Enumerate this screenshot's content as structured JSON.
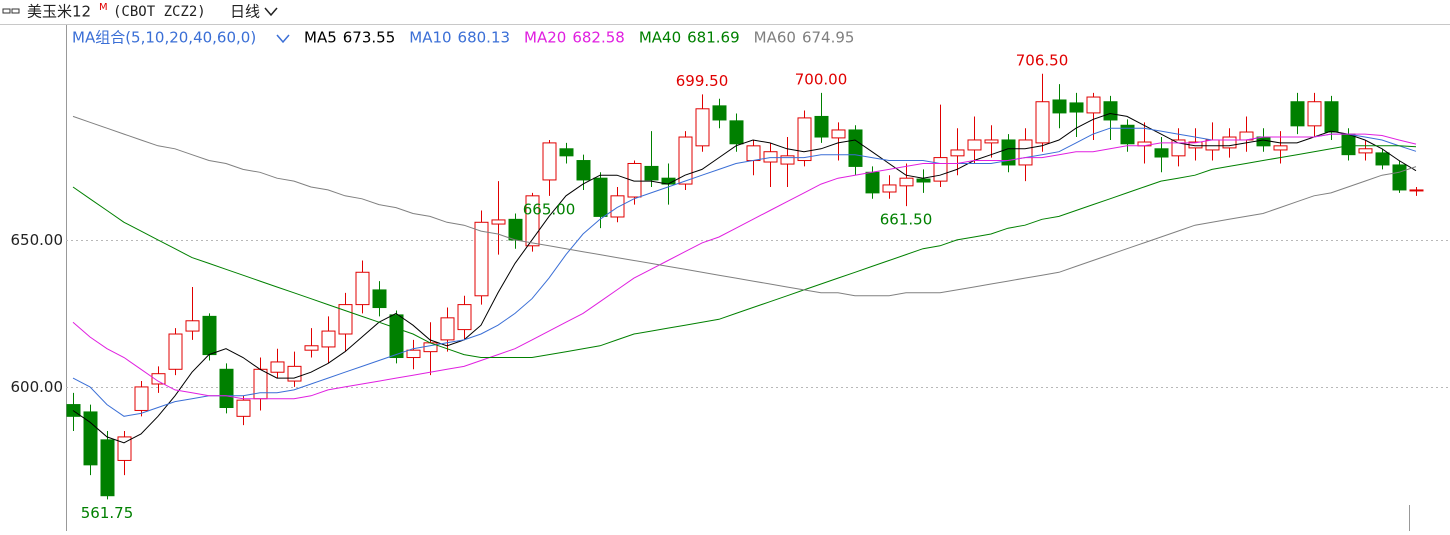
{
  "chart_data": {
    "type": "candlestick",
    "title": "美玉米12",
    "title_sup": "M",
    "subtitle": "(CBOT ZCZ2)",
    "period": "日线",
    "indicator": "MA组合(5,10,20,40,60,0)",
    "up_color": "#e00000",
    "down_color": "#008000",
    "ylim": [
      551,
      723.1
    ],
    "yticks": [
      {
        "value": 600,
        "label": "600.00"
      },
      {
        "value": 650,
        "label": "650.00"
      }
    ],
    "grid": true,
    "open": [
      594,
      591.5,
      582,
      575,
      592,
      601,
      606,
      619,
      624,
      606,
      590,
      596,
      605,
      602,
      612.5,
      613.6,
      618,
      628,
      633,
      624.5,
      610,
      612,
      616,
      619.5,
      631,
      655.4,
      657,
      648,
      670.4,
      681,
      677,
      671,
      657.8,
      664.6,
      675,
      671,
      669,
      682,
      695.6,
      690.5,
      677,
      676.5,
      675.8,
      677,
      692,
      684.7,
      687.4,
      673,
      666.3,
      668.4,
      670.7,
      670,
      678.6,
      680.6,
      683,
      684,
      675.5,
      683,
      697.6,
      696.6,
      693.2,
      697,
      689,
      682,
      681,
      678.6,
      681.3,
      680.6,
      681.3,
      684,
      685,
      680.6,
      697,
      688.8,
      697,
      686,
      679.6,
      679.6,
      675.5,
      667
    ],
    "high": [
      598,
      594,
      585,
      585,
      602,
      607,
      620,
      634,
      625,
      608,
      597,
      610,
      613,
      612,
      620,
      624,
      632,
      643,
      636,
      626,
      616,
      622,
      627,
      631,
      660,
      670,
      659,
      666,
      684,
      683,
      679,
      673,
      668,
      677,
      687,
      676,
      687,
      699.5,
      698,
      693,
      684,
      683,
      685,
      694,
      700,
      690,
      689,
      675,
      672,
      676,
      674,
      696,
      688,
      692,
      689,
      686,
      688,
      706.5,
      703,
      700,
      700,
      699,
      691,
      690,
      685,
      688,
      688,
      690,
      688,
      692,
      688,
      687,
      700,
      700,
      699,
      688,
      684,
      681,
      677,
      668
    ],
    "low": [
      585,
      570,
      561.75,
      570,
      590,
      598,
      604,
      616,
      609,
      591,
      587,
      592,
      603,
      600,
      610,
      608,
      612,
      625,
      624,
      608,
      606,
      604,
      612,
      616,
      628,
      645,
      647,
      646,
      665,
      676,
      667,
      654,
      656,
      662,
      668,
      662,
      667,
      680,
      688,
      680,
      672,
      668,
      668,
      675,
      683,
      677,
      672,
      664,
      664,
      661.5,
      666,
      668,
      672,
      676,
      678,
      673,
      670,
      680,
      688,
      685,
      684,
      684,
      680,
      676,
      673,
      675,
      677,
      677,
      678,
      680,
      680,
      676,
      686,
      685,
      684,
      677,
      677,
      674,
      666,
      665
    ],
    "close": [
      590,
      573.5,
      563,
      583,
      600,
      604.5,
      618,
      622.5,
      611,
      593,
      595.5,
      606,
      608.5,
      607,
      614,
      619,
      628,
      639,
      627,
      610,
      612.5,
      615,
      623.5,
      628,
      656,
      656.8,
      650,
      665,
      683,
      678.6,
      670.4,
      658,
      665,
      676,
      670.4,
      669,
      685,
      694.6,
      690.8,
      682.7,
      682,
      680,
      678.6,
      691.5,
      685,
      687.4,
      675,
      666,
      668.7,
      671,
      669.7,
      678,
      680.6,
      684,
      684,
      675.5,
      684,
      697,
      693.2,
      693.5,
      698.6,
      690.8,
      682.7,
      683.3,
      678.2,
      684,
      683.3,
      684,
      685,
      686.7,
      682,
      682,
      688.8,
      697,
      686.7,
      679,
      681,
      675.5,
      667,
      667
    ],
    "series": [
      {
        "name": "MA5",
        "color": "#000000",
        "values": [
          592,
          588,
          583,
          581,
          584,
          590,
          597,
          605,
          611,
          613,
          610,
          606,
          603,
          603,
          605,
          608,
          612,
          617,
          622,
          625,
          621,
          616,
          614,
          616,
          621,
          632,
          642,
          650,
          658,
          665,
          669,
          672,
          672,
          670,
          670,
          669,
          672,
          674,
          678,
          682,
          684,
          683,
          681,
          680,
          681,
          683,
          684,
          680,
          676,
          672,
          671,
          672,
          674,
          677,
          679,
          681,
          681,
          682,
          684,
          688,
          691,
          693,
          692,
          689,
          686,
          683,
          682,
          682,
          682,
          683,
          684,
          683,
          683,
          685,
          687,
          686,
          684,
          681,
          677,
          673.55
        ],
        "value_labels": {
          "79": "673.55"
        }
      },
      {
        "name": "MA10",
        "color": "#3b6fd6",
        "values": [
          603,
          600,
          594,
          590,
          591,
          593,
          595,
          596,
          597,
          597,
          597,
          598,
          598,
          599,
          601,
          603,
          605,
          607,
          609,
          611,
          613,
          614,
          615,
          616,
          618,
          621,
          625,
          630,
          637,
          645,
          652,
          657,
          661,
          664,
          666,
          668,
          670,
          672,
          674,
          676,
          677,
          678,
          678,
          678,
          679,
          679,
          679,
          678,
          677,
          677,
          677,
          676,
          676,
          676,
          676,
          677,
          678,
          679,
          680,
          683,
          686,
          688,
          688,
          688,
          687,
          686,
          685,
          684,
          684,
          684,
          685,
          685,
          685,
          685,
          686,
          686,
          685,
          684,
          682,
          680.13
        ],
        "value_labels": {
          "79": "680.13"
        }
      },
      {
        "name": "MA20",
        "color": "#e020e0",
        "values": [
          622,
          617,
          613,
          610,
          606,
          602,
          599,
          598,
          597,
          597,
          596,
          596,
          596,
          596,
          597,
          599,
          600,
          601,
          602,
          603,
          604,
          605,
          606,
          607,
          609,
          611,
          613,
          616,
          619,
          622,
          625,
          629,
          633,
          637,
          640,
          643,
          646,
          649,
          651,
          654,
          657,
          660,
          663,
          666,
          669,
          671,
          672,
          673,
          674,
          675,
          676,
          676,
          676,
          677,
          677,
          677,
          678,
          678,
          679,
          680,
          680,
          681,
          682,
          682,
          683,
          683,
          683,
          684,
          684,
          684,
          685,
          685,
          685,
          685,
          686,
          686,
          686,
          685.5,
          684,
          682.58
        ],
        "value_labels": {
          "79": "682.58"
        }
      },
      {
        "name": "MA40",
        "color": "#008000",
        "values": [
          668,
          664,
          660,
          656,
          653,
          650,
          647,
          644,
          642,
          640,
          638,
          636,
          634,
          632,
          630,
          628,
          626,
          624,
          622,
          620,
          618,
          615,
          613,
          611,
          610,
          610,
          610,
          610,
          611,
          612,
          613,
          614,
          616,
          618,
          619,
          620,
          621,
          622,
          623,
          625,
          627,
          629,
          631,
          633,
          635,
          637,
          639,
          641,
          643,
          645,
          647,
          648,
          650,
          651,
          652,
          654,
          655,
          657,
          658,
          660,
          662,
          664,
          666,
          668,
          670,
          671,
          672,
          674,
          675,
          676,
          677,
          678,
          679,
          680,
          681,
          682,
          682,
          682,
          682,
          681.69
        ],
        "value_labels": {
          "79": "681.69"
        }
      },
      {
        "name": "MA60",
        "color": "#808080",
        "values": [
          692,
          690,
          688,
          686,
          684,
          682,
          681,
          679,
          677,
          676,
          674,
          673,
          671,
          670,
          668,
          667,
          665,
          664,
          662,
          661,
          659,
          658,
          656,
          655,
          653,
          652,
          650,
          649,
          648,
          647,
          646,
          645,
          644,
          643,
          642,
          641,
          640,
          639,
          638,
          637,
          636,
          635,
          634,
          633,
          632,
          632,
          631,
          631,
          631,
          632,
          632,
          632,
          633,
          634,
          635,
          636,
          637,
          638,
          639,
          641,
          643,
          645,
          647,
          649,
          651,
          653,
          655,
          656,
          657,
          658,
          659,
          661,
          663,
          665,
          666,
          668,
          670,
          672,
          673,
          674.95
        ],
        "value_labels": {
          "79": "674.95"
        }
      }
    ],
    "annotations": [
      {
        "label": "699.50",
        "value": 699.5,
        "kind": "high"
      },
      {
        "label": "706.50",
        "value": 706.5,
        "kind": "high"
      },
      {
        "label": "700.00",
        "value": 700,
        "kind": "high"
      },
      {
        "label": "661.50",
        "value": 661.5,
        "kind": "low"
      },
      {
        "label": "665.00",
        "value": 665,
        "kind": "low"
      },
      {
        "label": "561.75",
        "value": 561.75,
        "kind": "low"
      }
    ]
  }
}
